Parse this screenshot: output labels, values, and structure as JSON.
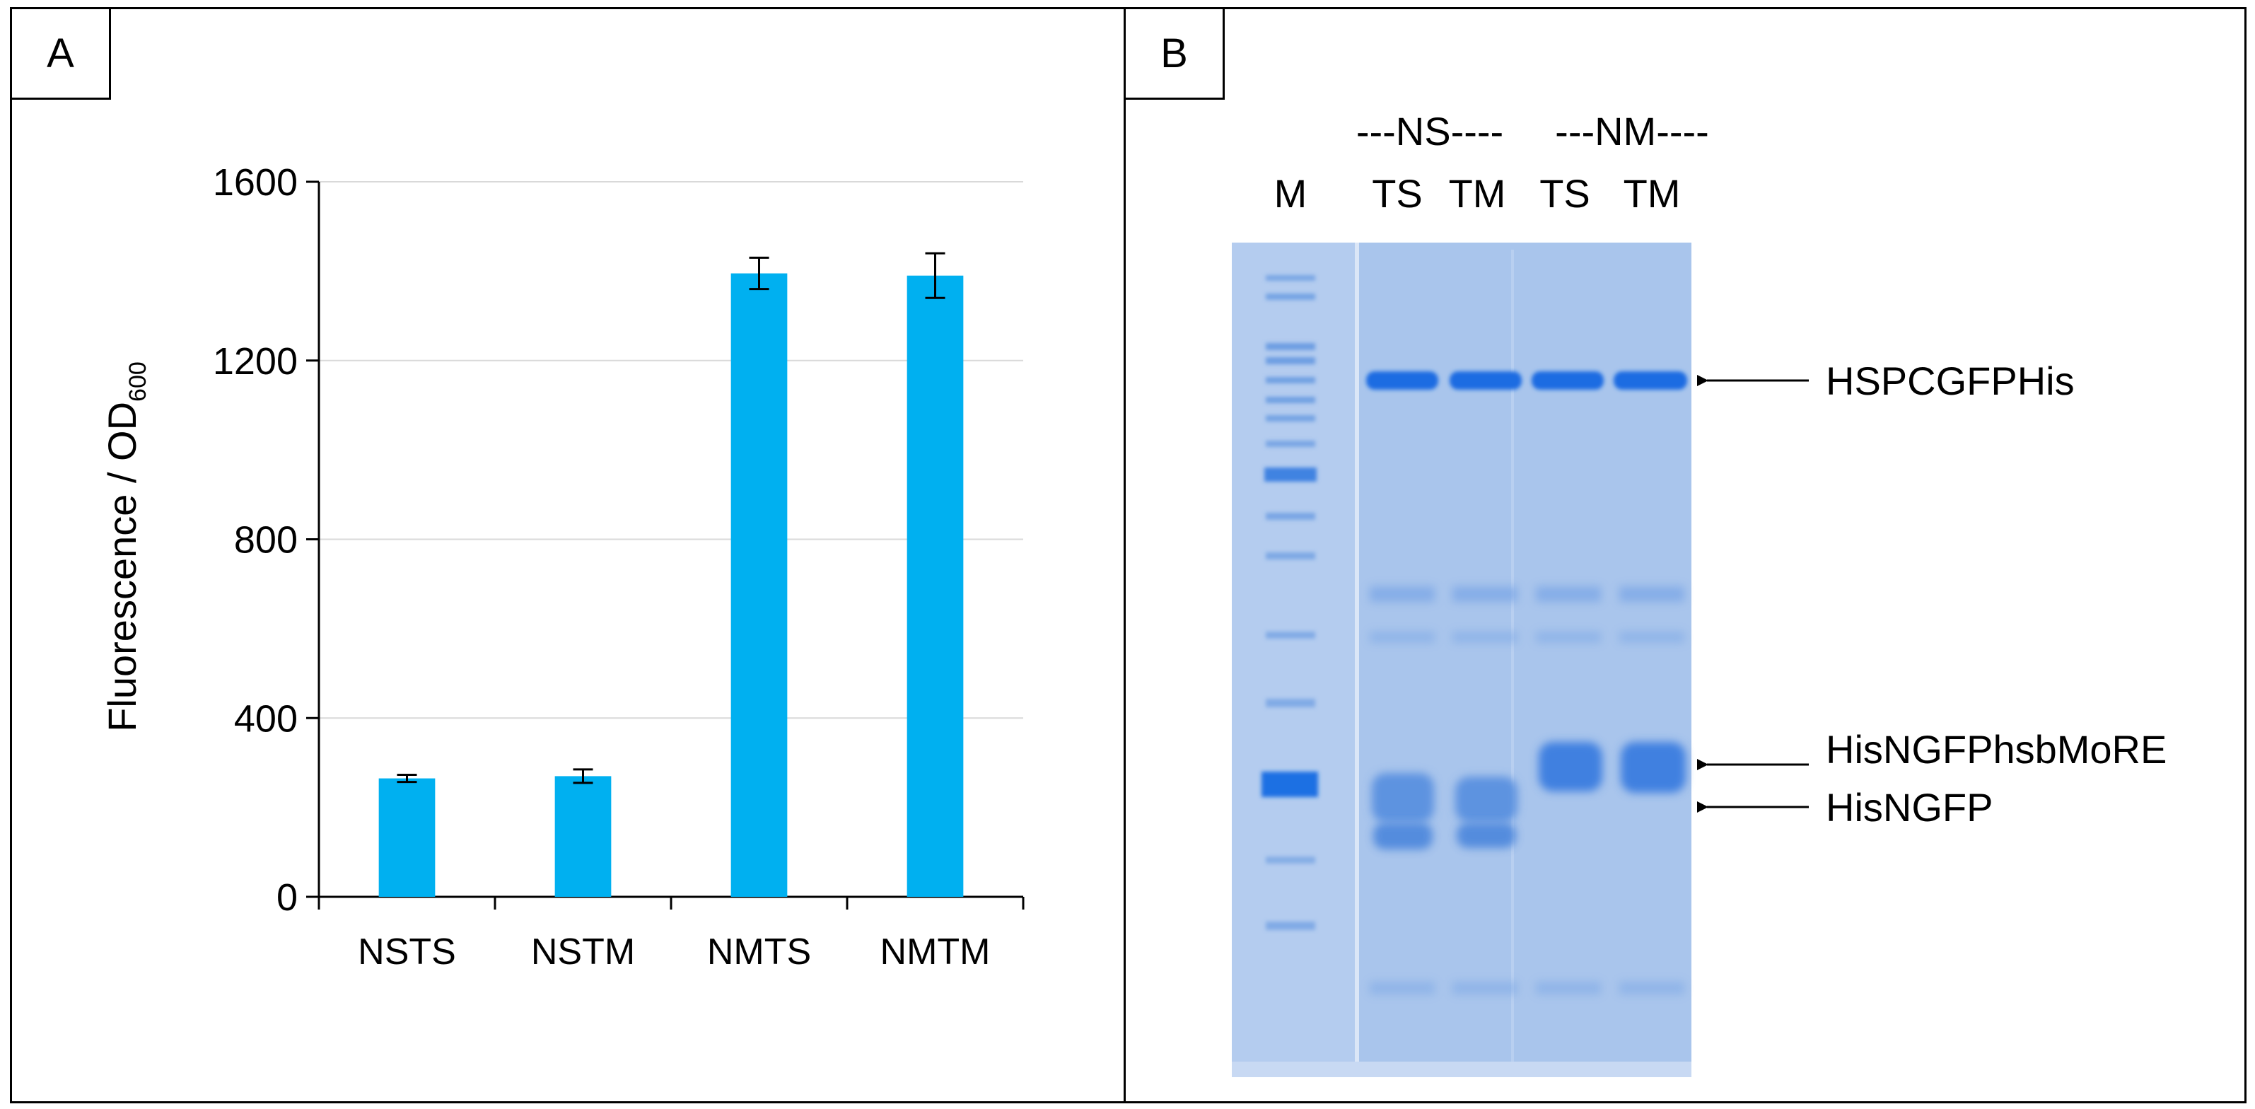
{
  "panels": {
    "a": {
      "label": "A"
    },
    "b": {
      "label": "B"
    }
  },
  "chart_data": {
    "type": "bar",
    "categories": [
      "NSTS",
      "NSTM",
      "NMTS",
      "NMTM"
    ],
    "values": [
      265,
      270,
      1395,
      1390
    ],
    "errors": [
      8,
      15,
      35,
      50
    ],
    "xlabel": "",
    "ylabel": "Fluorescence / OD",
    "ylabel_sub": "600",
    "ylim": [
      0,
      1600
    ],
    "yticks": [
      0,
      400,
      800,
      1200,
      1600
    ],
    "grid": true,
    "bar_color": "#00b0f0"
  },
  "gel": {
    "group_labels": [
      "---NS----",
      "---NM----"
    ],
    "lane_labels": [
      "M",
      "TS",
      "TM",
      "TS",
      "TM"
    ],
    "band_labels": [
      "HSPCGFPHis",
      "HisNGFPhsbMoRE",
      "HisNGFP"
    ],
    "gel_color": "#a8c4ec",
    "band_color": "#1e6fe0"
  }
}
